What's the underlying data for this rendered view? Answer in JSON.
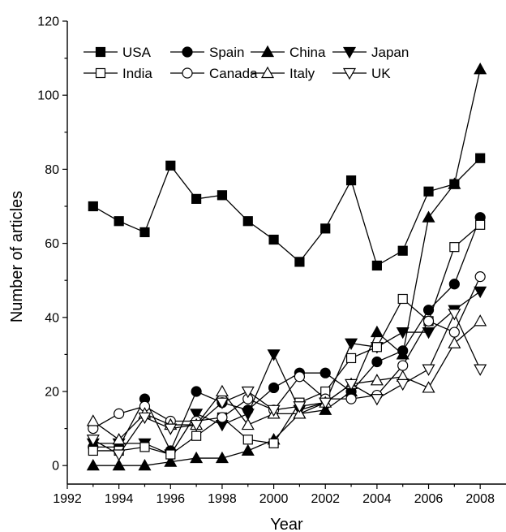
{
  "chart_data": {
    "type": "line",
    "title": "",
    "xlabel": "Year",
    "ylabel": "Number of articles",
    "xlim": [
      1992,
      2009
    ],
    "ylim": [
      -5,
      120
    ],
    "x_ticks": [
      1992,
      1994,
      1996,
      1998,
      2000,
      2002,
      2004,
      2006,
      2008
    ],
    "y_ticks": [
      0,
      20,
      40,
      60,
      80,
      100,
      120
    ],
    "grid": false,
    "legend_placement": "top",
    "x": [
      1993,
      1994,
      1995,
      1996,
      1997,
      1998,
      1999,
      2000,
      2001,
      2002,
      2003,
      2004,
      2005,
      2006,
      2007,
      2008
    ],
    "series": [
      {
        "name": "USA",
        "marker": "square-filled",
        "values": [
          70,
          66,
          63,
          81,
          72,
          73,
          66,
          61,
          55,
          64,
          77,
          54,
          58,
          74,
          76,
          83
        ]
      },
      {
        "name": "Spain",
        "marker": "circle-filled",
        "values": [
          5,
          5,
          18,
          4,
          20,
          17,
          15,
          21,
          25,
          25,
          20,
          28,
          31,
          42,
          49,
          67
        ]
      },
      {
        "name": "China",
        "marker": "triangle-up-filled",
        "values": [
          0,
          0,
          0,
          1,
          2,
          2,
          4,
          7,
          14,
          15,
          20,
          36,
          30,
          67,
          76,
          107
        ]
      },
      {
        "name": "Japan",
        "marker": "triangle-down-filled",
        "values": [
          6,
          6,
          6,
          3,
          14,
          11,
          14,
          30,
          15,
          17,
          33,
          32,
          36,
          36,
          42,
          47
        ]
      },
      {
        "name": "India",
        "marker": "square-open",
        "values": [
          4,
          4,
          5,
          3,
          8,
          13,
          7,
          6,
          17,
          20,
          29,
          32,
          45,
          39,
          59,
          65
        ]
      },
      {
        "name": "Canada",
        "marker": "circle-open",
        "values": [
          10,
          14,
          16,
          12,
          12,
          13,
          18,
          15,
          24,
          18,
          18,
          19,
          27,
          39,
          36,
          51
        ]
      },
      {
        "name": "Italy",
        "marker": "triangle-up-open",
        "values": [
          12,
          7,
          14,
          11,
          11,
          20,
          11,
          14,
          14,
          17,
          22,
          23,
          24,
          21,
          33,
          39
        ]
      },
      {
        "name": "UK",
        "marker": "triangle-down-open",
        "values": [
          7,
          3,
          13,
          10,
          11,
          17,
          20,
          15,
          16,
          17,
          22,
          18,
          22,
          26,
          41,
          26
        ]
      }
    ]
  }
}
